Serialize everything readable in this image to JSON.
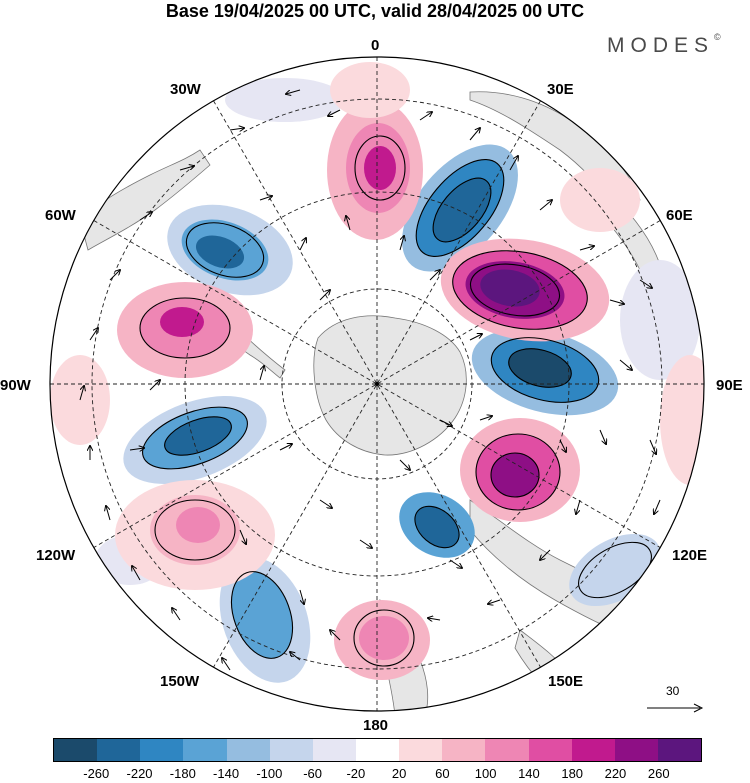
{
  "title": "Base 19/04/2025 00 UTC, valid 28/04/2025 00 UTC",
  "brand": {
    "name": "MODES",
    "mark": "©"
  },
  "map": {
    "projection": "polar-stereographic-south",
    "center": "South Pole",
    "longitude_labels": [
      "0",
      "30E",
      "60E",
      "90E",
      "120E",
      "150E",
      "180",
      "150W",
      "120W",
      "90W",
      "60W",
      "30W"
    ],
    "features": [
      "coastlines",
      "lat-lon-grid-dashed",
      "wind-vectors",
      "filled-anomaly-contours"
    ]
  },
  "vector_reference": {
    "value": "30"
  },
  "colorbar": {
    "colors": [
      "#1b4a6b",
      "#1f6699",
      "#2f86c2",
      "#5aa3d5",
      "#95bde0",
      "#c5d5ec",
      "#e6e6f3",
      "#ffffff",
      "#fbdadd",
      "#f6b4c5",
      "#ee86b4",
      "#e04ea3",
      "#c11a8e",
      "#8e0f85",
      "#5c167e"
    ],
    "tick_labels": [
      "-260",
      "-220",
      "-180",
      "-140",
      "-100",
      "-60",
      "-20",
      "20",
      "60",
      "100",
      "140",
      "180",
      "220",
      "260"
    ]
  }
}
